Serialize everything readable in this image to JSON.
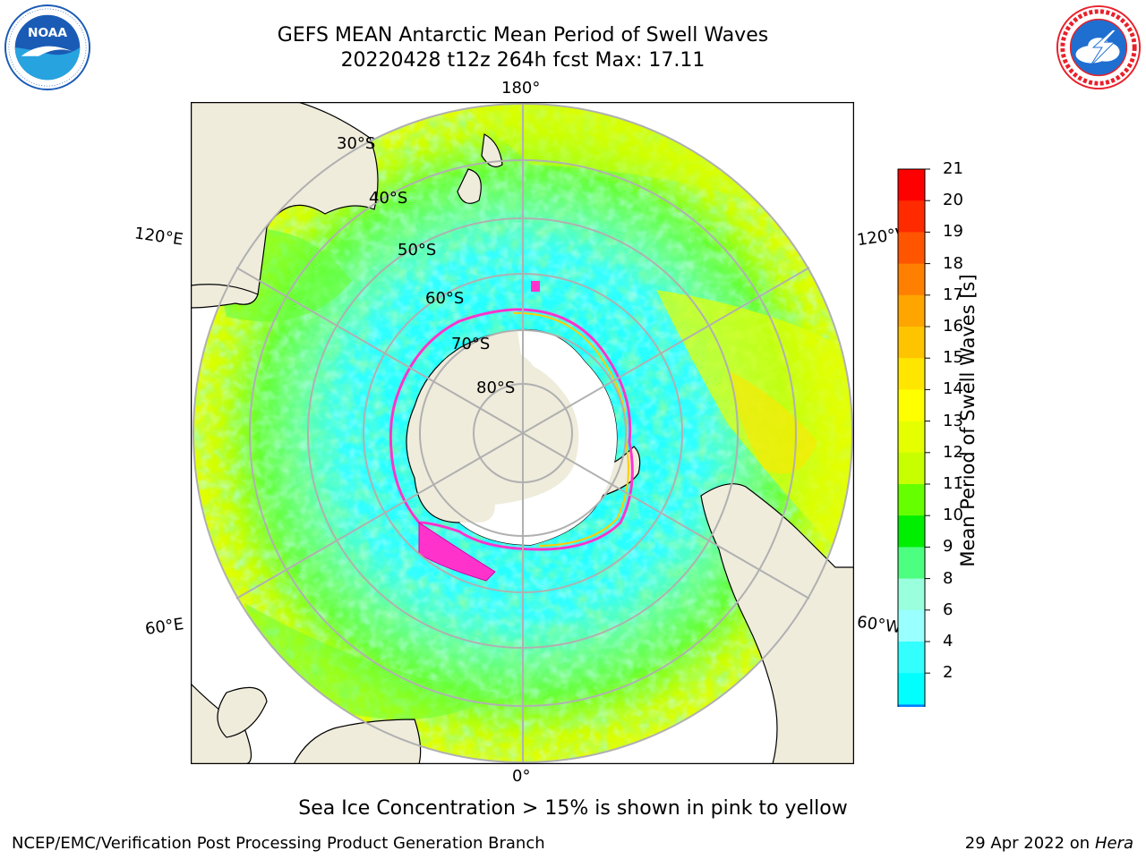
{
  "title": {
    "line1": "GEFS MEAN Antarctic Mean Period of Swell Waves",
    "line2": "20220428 t12z 264h fcst   Max: 17.11"
  },
  "logos": {
    "noaa": {
      "text": "NOAA",
      "ring_text": "NATIONAL OCEANIC AND ATMOSPHERIC ADMINISTRATION · U.S. DEPARTMENT OF COMMERCE",
      "colors": {
        "blue": "#1a5bb5",
        "sky": "#27a3e0",
        "white": "#ffffff"
      }
    },
    "nws": {
      "ring_text": "NATIONAL WEATHER SERVICE",
      "colors": {
        "red": "#e8212b",
        "blue": "#1f6fd1",
        "cloud": "#ffffff"
      }
    }
  },
  "map": {
    "projection": "south polar stereographic",
    "longitude_labels": {
      "top": "180°",
      "bottom": "0°",
      "upper_left": "120°E",
      "lower_left": "60°E",
      "upper_right": "120°W",
      "lower_right": "60°W"
    },
    "latitude_labels": [
      "30°S",
      "40°S",
      "50°S",
      "60°S",
      "70°S",
      "80°S"
    ],
    "colors": {
      "land": "#efecdc",
      "ice": "#ffffff",
      "grid": "#b0b0b0",
      "coast": "#000000",
      "sea_ice_pink": "#ff33cc"
    }
  },
  "colorbar": {
    "label": "Mean Period of Swell Waves [s]",
    "ticks": [
      "21",
      "20",
      "19",
      "18",
      "17",
      "16",
      "15",
      "14",
      "13",
      "12",
      "11",
      "10",
      "9",
      "8",
      "6",
      "4",
      "2"
    ],
    "bins_top_to_bottom": [
      "#ff0000",
      "#ff2a00",
      "#ff5500",
      "#ff8000",
      "#ffa500",
      "#ffc400",
      "#ffe600",
      "#ffff00",
      "#e5ff00",
      "#c8ff00",
      "#66ff00",
      "#00ee00",
      "#4dff80",
      "#99ffdd",
      "#99ffff",
      "#33ffff",
      "#00ffff",
      "#0080ff"
    ],
    "extend_color": "#0000ff"
  },
  "caption": "Sea Ice Concentration > 15% is shown in pink to yellow",
  "footer": {
    "left": "NCEP/EMC/Verification Post Processing Product Generation Branch",
    "right_prefix": "29 Apr 2022 on ",
    "right_host": "Hera"
  }
}
